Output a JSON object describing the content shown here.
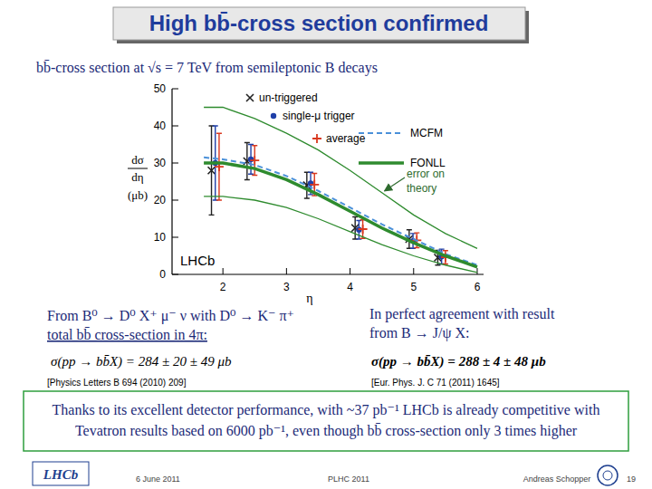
{
  "slide": {
    "title": "High bb̄-cross section confirmed",
    "subtitle": "bb̄-cross section at √s = 7 TeV from semileptonic B decays",
    "left": {
      "lines": [
        "From B⁰ → D⁰ X⁺ μ⁻ ν with D⁰ → K⁻ π⁺",
        "total bb̄ cross-section in 4π:"
      ],
      "formula": "σ(pp → bb̄X) = 284 ± 20 ± 49 μb",
      "reference": "[Physics Letters B 694 (2010) 209]"
    },
    "right": {
      "lines": [
        "In perfect agreement with result",
        "from B → J/ψ X:"
      ],
      "formula": "σ(pp → bb̄X) = 288 ± 4 ± 48 μb",
      "reference": "[Eur. Phys. J. C 71 (2011) 1645]"
    },
    "conclusion": "Thanks to its excellent detector performance, with ~37 pb⁻¹ LHCb is already competitive with Tevatron results based on 6000 pb⁻¹, even though bb̄ cross-section only 3 times higher",
    "footer": {
      "logo": "LHCb",
      "date": "6 June 2011",
      "conference": "PLHC 2011",
      "author": "Andreas Schopper",
      "page": "19"
    }
  },
  "chart_data": {
    "type": "scatter",
    "xlabel": "η",
    "ylabel": {
      "numerator": "dσ",
      "denominator": "dη",
      "unit": "(μb)"
    },
    "xlim": [
      1.2,
      6.1
    ],
    "xticks": [
      2,
      3,
      4,
      5,
      6
    ],
    "ylim": [
      0,
      50
    ],
    "yticks": [
      0,
      10,
      20,
      30,
      40,
      50
    ],
    "grid": false,
    "legend": "top",
    "annotations": [
      {
        "text": "error on theory"
      },
      {
        "text": "LHCb"
      }
    ],
    "series": [
      {
        "name": "un-triggered",
        "type": "scatter",
        "marker": "x",
        "color": "#222222",
        "x": [
          1.82,
          2.38,
          3.32,
          4.08,
          4.93,
          5.38
        ],
        "values": [
          28,
          30.5,
          24,
          12.5,
          9.5,
          4.5
        ],
        "errors": [
          12,
          5,
          3.5,
          3,
          2.5,
          2
        ]
      },
      {
        "name": "single-μ trigger",
        "type": "scatter",
        "marker": "dot",
        "color": "#1f3fa8",
        "x": [
          1.88,
          2.44,
          3.38,
          4.14,
          4.99,
          5.44
        ],
        "values": [
          30,
          31,
          24.5,
          12,
          9,
          4.8
        ],
        "errors": [
          10,
          4,
          3,
          2.5,
          2,
          2
        ]
      },
      {
        "name": "average",
        "type": "scatter",
        "marker": "plus",
        "color": "#d9381e",
        "x": [
          1.94,
          2.5,
          3.44,
          4.2,
          5.05,
          5.5
        ],
        "values": [
          29,
          30.7,
          24.2,
          12.2,
          9.2,
          4.6
        ],
        "errors": [
          9,
          4,
          3,
          2.5,
          2,
          1.8
        ]
      },
      {
        "name": "MCFM",
        "type": "line",
        "line_style": "dashed",
        "color": "#4a90d9",
        "x": [
          1.7,
          2,
          2.5,
          3,
          3.5,
          4,
          4.5,
          5,
          5.5,
          6
        ],
        "values": [
          31.5,
          31,
          29.5,
          26.5,
          22.5,
          18,
          13.5,
          9.5,
          5.5,
          2.5
        ]
      },
      {
        "name": "FONLL",
        "type": "line",
        "line_style": "solid",
        "color": "#2e8b2e",
        "x": [
          1.7,
          2,
          2.5,
          3,
          3.5,
          4,
          4.5,
          5,
          5.5,
          6
        ],
        "values": [
          30,
          30,
          28.5,
          25.5,
          21.5,
          17,
          12.5,
          8.5,
          5,
          2
        ],
        "upper": [
          45,
          45,
          42,
          38,
          33.5,
          28,
          22,
          16,
          11,
          7
        ],
        "lower": [
          21,
          21,
          20,
          18,
          15,
          11.5,
          8,
          5,
          2.5,
          0.5
        ]
      }
    ]
  }
}
